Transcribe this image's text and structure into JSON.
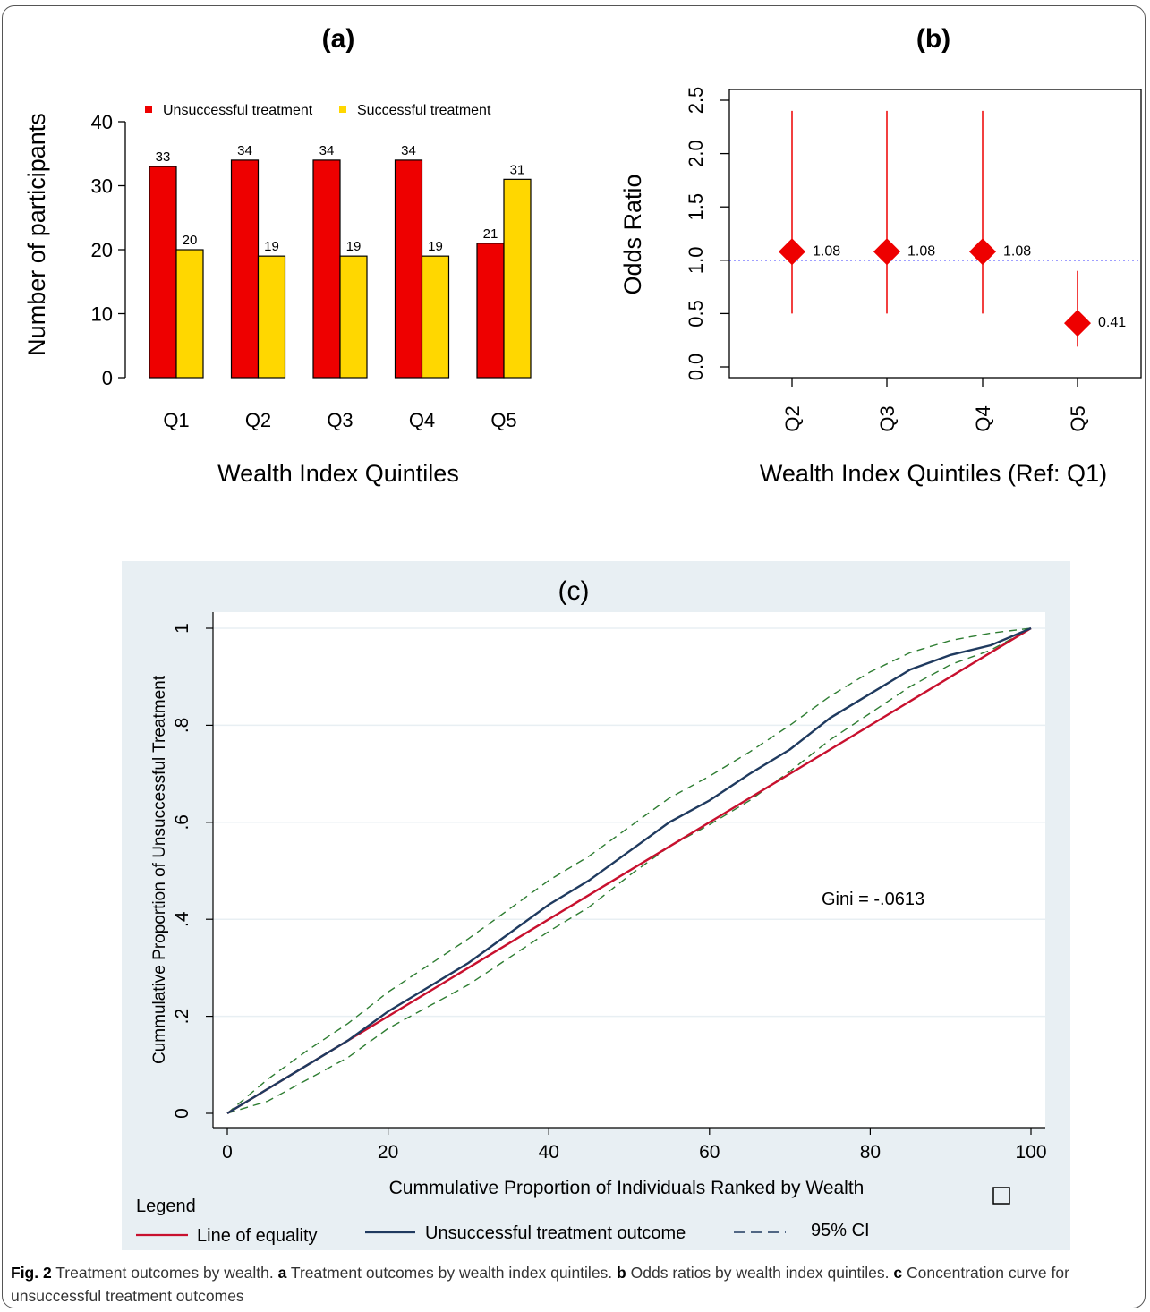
{
  "figure": {
    "caption_label": "Fig. 2",
    "caption_title": "Treatment outcomes by wealth.",
    "caption_a_label": "a",
    "caption_a_text": "Treatment outcomes by wealth index quintiles.",
    "caption_b_label": "b",
    "caption_b_text": "Odds ratios by wealth index quintiles.",
    "caption_c_label": "c",
    "caption_c_text": "Concentration curve for unsuccessful treatment outcomes"
  },
  "colors": {
    "red": "#ee0000",
    "yellow": "#ffd700",
    "navy": "#1f3a5f",
    "equality_red": "#c8102e",
    "ci_green": "#2e7d32",
    "ref_blue": "#0000ff",
    "panel_bg": "#e8eff3"
  },
  "chart_data": [
    {
      "type": "bar",
      "panel_label": "(a)",
      "xlabel": "Wealth Index Quintiles",
      "ylabel": "Number of participants",
      "ylim": [
        0,
        40
      ],
      "yticks": [
        0,
        10,
        20,
        30,
        40
      ],
      "categories": [
        "Q1",
        "Q2",
        "Q3",
        "Q4",
        "Q5"
      ],
      "series": [
        {
          "name": "Unsuccessful treatment",
          "color": "#ee0000",
          "values": [
            33,
            34,
            34,
            34,
            21
          ]
        },
        {
          "name": "Successful treatment",
          "color": "#ffd700",
          "values": [
            20,
            19,
            19,
            19,
            31
          ]
        }
      ],
      "legend_position": "top"
    },
    {
      "type": "scatter",
      "panel_label": "(b)",
      "xlabel": "Wealth Index Quintiles (Ref: Q1)",
      "ylabel": "Odds Ratio",
      "ylim": [
        0,
        2.5
      ],
      "yticks": [
        "0.0",
        "0.5",
        "1.0",
        "1.5",
        "2.0",
        "2.5"
      ],
      "categories": [
        "Q2",
        "Q3",
        "Q4",
        "Q5"
      ],
      "odds_ratio": [
        1.08,
        1.08,
        1.08,
        0.41
      ],
      "labels": [
        "1.08",
        "1.08",
        "1.08",
        "0.41"
      ],
      "ci_lower": [
        0.5,
        0.5,
        0.5,
        0.19
      ],
      "ci_upper": [
        2.4,
        2.4,
        2.4,
        0.9
      ],
      "reference_line": 1.0
    },
    {
      "type": "line",
      "panel_label": "(c)",
      "xlabel": "Cummulative Proportion of Individuals Ranked by Wealth",
      "ylabel": "Cummulative Proportion of Unsuccessful Treatment",
      "xlim": [
        0,
        100
      ],
      "ylim": [
        0,
        1
      ],
      "xticks": [
        "0",
        "20",
        "40",
        "60",
        "80",
        "100"
      ],
      "ytick_values": [
        0,
        0.2,
        0.4,
        0.6,
        0.8,
        1
      ],
      "yticks": [
        "0",
        ".2",
        ".4",
        ".6",
        ".8",
        "1"
      ],
      "grid": true,
      "annotation": "Gini = -.0613",
      "legend_title": "Legend",
      "series": [
        {
          "name": "Line of equality",
          "x": [
            0,
            100
          ],
          "y": [
            0,
            1
          ]
        },
        {
          "name": "Unsuccessful treatment outcome",
          "x": [
            0,
            5,
            10,
            15,
            20,
            25,
            30,
            35,
            40,
            45,
            50,
            55,
            60,
            65,
            70,
            75,
            80,
            85,
            90,
            95,
            100
          ],
          "y": [
            0,
            0.05,
            0.1,
            0.15,
            0.21,
            0.26,
            0.31,
            0.37,
            0.43,
            0.48,
            0.54,
            0.6,
            0.645,
            0.7,
            0.75,
            0.815,
            0.865,
            0.915,
            0.945,
            0.965,
            1.0
          ]
        },
        {
          "name": "95% CI",
          "x": [
            0,
            5,
            10,
            15,
            20,
            25,
            30,
            35,
            40,
            45,
            50,
            55,
            60,
            65,
            70,
            75,
            80,
            85,
            90,
            95,
            100
          ],
          "y": [
            0,
            0.07,
            0.13,
            0.185,
            0.25,
            0.305,
            0.36,
            0.42,
            0.48,
            0.53,
            0.59,
            0.65,
            0.695,
            0.745,
            0.8,
            0.86,
            0.91,
            0.95,
            0.975,
            0.99,
            1.0
          ]
        },
        {
          "name": "95% CI lower",
          "x": [
            0,
            5,
            10,
            15,
            20,
            25,
            30,
            35,
            40,
            45,
            50,
            55,
            60,
            65,
            70,
            75,
            80,
            85,
            90,
            95,
            100
          ],
          "y": [
            0,
            0.025,
            0.07,
            0.115,
            0.175,
            0.22,
            0.265,
            0.32,
            0.375,
            0.425,
            0.49,
            0.55,
            0.595,
            0.645,
            0.705,
            0.77,
            0.825,
            0.88,
            0.925,
            0.955,
            1.0
          ]
        }
      ]
    }
  ]
}
